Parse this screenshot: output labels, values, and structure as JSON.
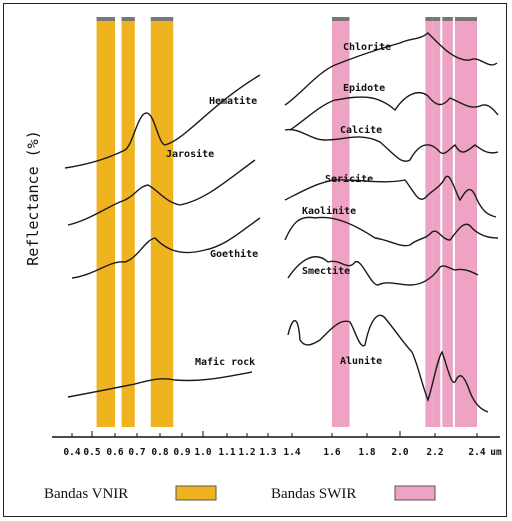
{
  "chart_data": {
    "type": "line",
    "ylabel": "Reflectance (%)",
    "xunit": "um",
    "xticks": [
      "0.4",
      "0.5",
      "0.6",
      "0.7",
      "0.8",
      "0.9",
      "1.0",
      "1.1",
      "1.2",
      "1.3",
      "1.4",
      "1.6",
      "1.8",
      "2.0",
      "2.2",
      "2.4"
    ],
    "bands": [
      {
        "group": "VNIR",
        "range": [
          0.52,
          0.6
        ]
      },
      {
        "group": "VNIR",
        "range": [
          0.63,
          0.69
        ]
      },
      {
        "group": "VNIR",
        "range": [
          0.76,
          0.86
        ]
      },
      {
        "group": "SWIR",
        "range": [
          1.6,
          1.7
        ]
      },
      {
        "group": "SWIR",
        "range": [
          2.145,
          2.185
        ]
      },
      {
        "group": "SWIR",
        "range": [
          2.185,
          2.225
        ]
      },
      {
        "group": "SWIR",
        "range": [
          2.235,
          2.285
        ]
      },
      {
        "group": "SWIR",
        "range": [
          2.295,
          2.365
        ]
      },
      {
        "group": "SWIR",
        "range": [
          2.36,
          2.43
        ]
      }
    ],
    "series": [
      {
        "name": "Hematite",
        "region": "VNIR"
      },
      {
        "name": "Jarosite",
        "region": "VNIR"
      },
      {
        "name": "Goethite",
        "region": "VNIR"
      },
      {
        "name": "Mafic rock",
        "region": "VNIR"
      },
      {
        "name": "Chlorite",
        "region": "SWIR"
      },
      {
        "name": "Epidote",
        "region": "SWIR"
      },
      {
        "name": "Calcite",
        "region": "SWIR"
      },
      {
        "name": "Sericite",
        "region": "SWIR"
      },
      {
        "name": "Kaolinite",
        "region": "SWIR"
      },
      {
        "name": "Smectite",
        "region": "SWIR"
      },
      {
        "name": "Alunite",
        "region": "SWIR"
      }
    ],
    "grid": false
  },
  "legend": {
    "vnir_label": "Bandas VNIR",
    "swir_label": "Bandas SWIR"
  },
  "colors": {
    "vnir": "#EFB31F",
    "swir": "#EEA2C4",
    "band_cap": "#777777",
    "curve": "#1a1a1a"
  }
}
